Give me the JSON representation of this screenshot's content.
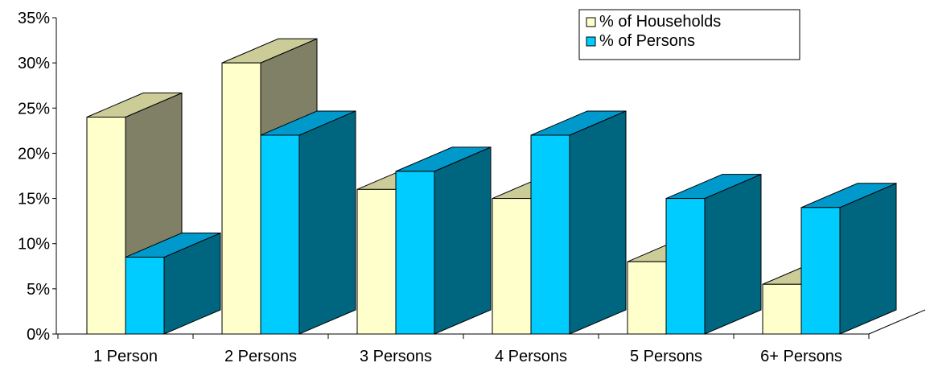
{
  "chart_data": {
    "type": "bar",
    "style": "3d-clustered",
    "categories": [
      "1 Person",
      "2 Persons",
      "3 Persons",
      "4 Persons",
      "5 Persons",
      "6+ Persons"
    ],
    "series": [
      {
        "name": "% of Households",
        "values": [
          24,
          30,
          16,
          15,
          8,
          5.5
        ],
        "color": "#ffffcc",
        "side_color": "#808066",
        "top_color": "#cccc99"
      },
      {
        "name": "% of Persons",
        "values": [
          8.5,
          22,
          18,
          22,
          15,
          14
        ],
        "color": "#00ccff",
        "side_color": "#006680",
        "top_color": "#0099cc"
      }
    ],
    "y_ticks": [
      "0%",
      "5%",
      "10%",
      "15%",
      "20%",
      "25%",
      "30%",
      "35%"
    ],
    "ylim": [
      0,
      35
    ],
    "legend_position": "top-right",
    "grid": false
  }
}
